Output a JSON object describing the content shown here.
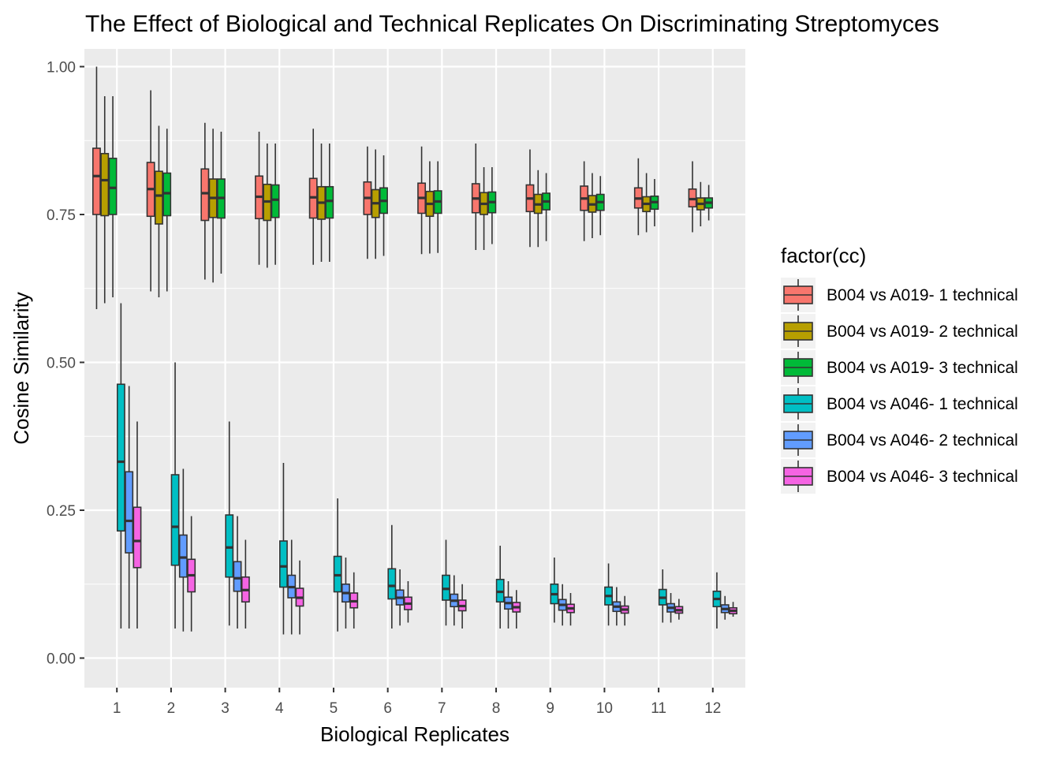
{
  "chart_data": {
    "type": "boxplot",
    "title": "The Effect of Biological and Technical Replicates On Discriminating Streptomyces",
    "xlabel": "Biological Replicates",
    "ylabel": "Cosine Similarity",
    "ylim": [
      -0.05,
      1.03
    ],
    "y_ticks": [
      "0.00",
      "0.25",
      "0.50",
      "0.75",
      "1.00"
    ],
    "categories": [
      "1",
      "2",
      "3",
      "4",
      "5",
      "6",
      "7",
      "8",
      "9",
      "10",
      "11",
      "12"
    ],
    "grid": true,
    "legend_title": "factor(cc)",
    "legend_position": "right",
    "series": [
      {
        "name": "B004 vs A019- 1 technical",
        "color": "#F8766D",
        "boxes": [
          {
            "min": 0.59,
            "q1": 0.75,
            "median": 0.815,
            "q3": 0.862,
            "max": 1.0
          },
          {
            "min": 0.62,
            "q1": 0.747,
            "median": 0.793,
            "q3": 0.838,
            "max": 0.96
          },
          {
            "min": 0.64,
            "q1": 0.74,
            "median": 0.786,
            "q3": 0.827,
            "max": 0.905
          },
          {
            "min": 0.665,
            "q1": 0.743,
            "median": 0.78,
            "q3": 0.815,
            "max": 0.89
          },
          {
            "min": 0.665,
            "q1": 0.744,
            "median": 0.779,
            "q3": 0.811,
            "max": 0.895
          },
          {
            "min": 0.675,
            "q1": 0.75,
            "median": 0.778,
            "q3": 0.805,
            "max": 0.865
          },
          {
            "min": 0.683,
            "q1": 0.752,
            "median": 0.778,
            "q3": 0.803,
            "max": 0.865
          },
          {
            "min": 0.69,
            "q1": 0.753,
            "median": 0.777,
            "q3": 0.802,
            "max": 0.87
          },
          {
            "min": 0.695,
            "q1": 0.755,
            "median": 0.777,
            "q3": 0.8,
            "max": 0.86
          },
          {
            "min": 0.705,
            "q1": 0.757,
            "median": 0.777,
            "q3": 0.798,
            "max": 0.84
          },
          {
            "min": 0.715,
            "q1": 0.761,
            "median": 0.777,
            "q3": 0.795,
            "max": 0.845
          },
          {
            "min": 0.72,
            "q1": 0.763,
            "median": 0.776,
            "q3": 0.793,
            "max": 0.84
          }
        ]
      },
      {
        "name": "B004 vs A019- 2 technical",
        "color": "#B79F00",
        "boxes": [
          {
            "min": 0.6,
            "q1": 0.748,
            "median": 0.808,
            "q3": 0.853,
            "max": 0.95
          },
          {
            "min": 0.61,
            "q1": 0.734,
            "median": 0.782,
            "q3": 0.823,
            "max": 0.9
          },
          {
            "min": 0.635,
            "q1": 0.745,
            "median": 0.778,
            "q3": 0.81,
            "max": 0.895
          },
          {
            "min": 0.66,
            "q1": 0.74,
            "median": 0.772,
            "q3": 0.801,
            "max": 0.87
          },
          {
            "min": 0.67,
            "q1": 0.742,
            "median": 0.77,
            "q3": 0.797,
            "max": 0.87
          },
          {
            "min": 0.675,
            "q1": 0.745,
            "median": 0.769,
            "q3": 0.792,
            "max": 0.86
          },
          {
            "min": 0.684,
            "q1": 0.747,
            "median": 0.768,
            "q3": 0.789,
            "max": 0.84
          },
          {
            "min": 0.69,
            "q1": 0.75,
            "median": 0.768,
            "q3": 0.787,
            "max": 0.83
          },
          {
            "min": 0.695,
            "q1": 0.752,
            "median": 0.767,
            "q3": 0.784,
            "max": 0.825
          },
          {
            "min": 0.71,
            "q1": 0.754,
            "median": 0.767,
            "q3": 0.782,
            "max": 0.82
          },
          {
            "min": 0.72,
            "q1": 0.755,
            "median": 0.768,
            "q3": 0.78,
            "max": 0.82
          },
          {
            "min": 0.73,
            "q1": 0.758,
            "median": 0.768,
            "q3": 0.778,
            "max": 0.805
          }
        ]
      },
      {
        "name": "B004 vs A019- 3 technical",
        "color": "#00BA38",
        "boxes": [
          {
            "min": 0.61,
            "q1": 0.75,
            "median": 0.795,
            "q3": 0.845,
            "max": 0.95
          },
          {
            "min": 0.62,
            "q1": 0.748,
            "median": 0.786,
            "q3": 0.82,
            "max": 0.895
          },
          {
            "min": 0.65,
            "q1": 0.744,
            "median": 0.778,
            "q3": 0.81,
            "max": 0.89
          },
          {
            "min": 0.665,
            "q1": 0.745,
            "median": 0.775,
            "q3": 0.8,
            "max": 0.87
          },
          {
            "min": 0.67,
            "q1": 0.744,
            "median": 0.773,
            "q3": 0.797,
            "max": 0.87
          },
          {
            "min": 0.68,
            "q1": 0.752,
            "median": 0.773,
            "q3": 0.795,
            "max": 0.85
          },
          {
            "min": 0.685,
            "q1": 0.752,
            "median": 0.772,
            "q3": 0.79,
            "max": 0.84
          },
          {
            "min": 0.7,
            "q1": 0.753,
            "median": 0.771,
            "q3": 0.788,
            "max": 0.83
          },
          {
            "min": 0.705,
            "q1": 0.758,
            "median": 0.772,
            "q3": 0.786,
            "max": 0.82
          },
          {
            "min": 0.715,
            "q1": 0.757,
            "median": 0.771,
            "q3": 0.784,
            "max": 0.815
          },
          {
            "min": 0.73,
            "q1": 0.759,
            "median": 0.771,
            "q3": 0.781,
            "max": 0.81
          },
          {
            "min": 0.74,
            "q1": 0.761,
            "median": 0.77,
            "q3": 0.778,
            "max": 0.8
          }
        ]
      },
      {
        "name": "B004 vs A046- 1 technical",
        "color": "#00BFC4",
        "boxes": [
          {
            "min": 0.05,
            "q1": 0.215,
            "median": 0.332,
            "q3": 0.463,
            "max": 0.6
          },
          {
            "min": 0.05,
            "q1": 0.157,
            "median": 0.222,
            "q3": 0.31,
            "max": 0.5
          },
          {
            "min": 0.055,
            "q1": 0.137,
            "median": 0.187,
            "q3": 0.242,
            "max": 0.4
          },
          {
            "min": 0.04,
            "q1": 0.12,
            "median": 0.155,
            "q3": 0.198,
            "max": 0.33
          },
          {
            "min": 0.045,
            "q1": 0.112,
            "median": 0.14,
            "q3": 0.172,
            "max": 0.27
          },
          {
            "min": 0.05,
            "q1": 0.1,
            "median": 0.122,
            "q3": 0.151,
            "max": 0.225
          },
          {
            "min": 0.055,
            "q1": 0.098,
            "median": 0.117,
            "q3": 0.14,
            "max": 0.2
          },
          {
            "min": 0.05,
            "q1": 0.095,
            "median": 0.112,
            "q3": 0.133,
            "max": 0.19
          },
          {
            "min": 0.06,
            "q1": 0.092,
            "median": 0.108,
            "q3": 0.125,
            "max": 0.17
          },
          {
            "min": 0.055,
            "q1": 0.09,
            "median": 0.105,
            "q3": 0.12,
            "max": 0.16
          },
          {
            "min": 0.06,
            "q1": 0.09,
            "median": 0.102,
            "q3": 0.116,
            "max": 0.15
          },
          {
            "min": 0.05,
            "q1": 0.087,
            "median": 0.1,
            "q3": 0.113,
            "max": 0.145
          }
        ]
      },
      {
        "name": "B004 vs A046- 2 technical",
        "color": "#619CFF",
        "boxes": [
          {
            "min": 0.05,
            "q1": 0.178,
            "median": 0.232,
            "q3": 0.315,
            "max": 0.46
          },
          {
            "min": 0.045,
            "q1": 0.137,
            "median": 0.17,
            "q3": 0.208,
            "max": 0.32
          },
          {
            "min": 0.05,
            "q1": 0.113,
            "median": 0.135,
            "q3": 0.163,
            "max": 0.24
          },
          {
            "min": 0.04,
            "q1": 0.102,
            "median": 0.12,
            "q3": 0.14,
            "max": 0.2
          },
          {
            "min": 0.05,
            "q1": 0.095,
            "median": 0.11,
            "q3": 0.125,
            "max": 0.17
          },
          {
            "min": 0.055,
            "q1": 0.09,
            "median": 0.102,
            "q3": 0.115,
            "max": 0.15
          },
          {
            "min": 0.055,
            "q1": 0.087,
            "median": 0.097,
            "q3": 0.108,
            "max": 0.14
          },
          {
            "min": 0.05,
            "q1": 0.083,
            "median": 0.093,
            "q3": 0.103,
            "max": 0.13
          },
          {
            "min": 0.055,
            "q1": 0.081,
            "median": 0.09,
            "q3": 0.099,
            "max": 0.125
          },
          {
            "min": 0.055,
            "q1": 0.079,
            "median": 0.087,
            "q3": 0.095,
            "max": 0.12
          },
          {
            "min": 0.06,
            "q1": 0.078,
            "median": 0.085,
            "q3": 0.092,
            "max": 0.11
          },
          {
            "min": 0.065,
            "q1": 0.077,
            "median": 0.083,
            "q3": 0.09,
            "max": 0.105
          }
        ]
      },
      {
        "name": "B004 vs A046- 3 technical",
        "color": "#F564E3",
        "boxes": [
          {
            "min": 0.05,
            "q1": 0.153,
            "median": 0.198,
            "q3": 0.255,
            "max": 0.4
          },
          {
            "min": 0.045,
            "q1": 0.112,
            "median": 0.14,
            "q3": 0.167,
            "max": 0.24
          },
          {
            "min": 0.05,
            "q1": 0.095,
            "median": 0.115,
            "q3": 0.137,
            "max": 0.2
          },
          {
            "min": 0.04,
            "q1": 0.088,
            "median": 0.102,
            "q3": 0.118,
            "max": 0.165
          },
          {
            "min": 0.05,
            "q1": 0.085,
            "median": 0.096,
            "q3": 0.11,
            "max": 0.145
          },
          {
            "min": 0.06,
            "q1": 0.082,
            "median": 0.092,
            "q3": 0.103,
            "max": 0.13
          },
          {
            "min": 0.05,
            "q1": 0.08,
            "median": 0.088,
            "q3": 0.098,
            "max": 0.125
          },
          {
            "min": 0.05,
            "q1": 0.078,
            "median": 0.086,
            "q3": 0.094,
            "max": 0.115
          },
          {
            "min": 0.055,
            "q1": 0.077,
            "median": 0.084,
            "q3": 0.091,
            "max": 0.11
          },
          {
            "min": 0.055,
            "q1": 0.076,
            "median": 0.082,
            "q3": 0.088,
            "max": 0.105
          },
          {
            "min": 0.065,
            "q1": 0.076,
            "median": 0.081,
            "q3": 0.087,
            "max": 0.1
          },
          {
            "min": 0.07,
            "q1": 0.075,
            "median": 0.08,
            "q3": 0.085,
            "max": 0.095
          }
        ]
      }
    ]
  }
}
